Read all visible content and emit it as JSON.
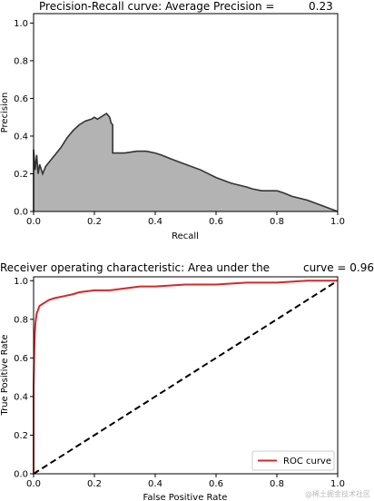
{
  "watermark": "@稀土掘金技术社区",
  "chart_data": [
    {
      "type": "area",
      "title": "Precision-Recall curve: Average Precision =",
      "title_value": "0.23",
      "xlabel": "Recall",
      "ylabel": "Precision",
      "xlim": [
        0.0,
        1.0
      ],
      "ylim": [
        0.0,
        1.05
      ],
      "xticks": [
        "0.0",
        "0.2",
        "0.4",
        "0.6",
        "0.8",
        "1.0"
      ],
      "yticks": [
        "0.0",
        "0.2",
        "0.4",
        "0.6",
        "0.8",
        "1.0"
      ],
      "fill_color": "#b3b3b3",
      "line_color": "#333333",
      "series": [
        {
          "x": [
            0.0,
            0.0,
            0.005,
            0.01,
            0.015,
            0.02,
            0.03,
            0.04,
            0.05,
            0.07,
            0.09,
            0.11,
            0.13,
            0.15,
            0.17,
            0.19,
            0.2,
            0.21,
            0.22,
            0.23,
            0.24,
            0.25,
            0.255,
            0.26,
            0.26,
            0.3,
            0.34,
            0.37,
            0.4,
            0.42,
            0.45,
            0.5,
            0.55,
            0.6,
            0.65,
            0.7,
            0.72,
            0.75,
            0.8,
            0.82,
            0.85,
            0.9,
            0.95,
            1.0
          ],
          "y": [
            0.0,
            0.33,
            0.22,
            0.3,
            0.2,
            0.25,
            0.2,
            0.24,
            0.26,
            0.3,
            0.34,
            0.39,
            0.43,
            0.46,
            0.48,
            0.49,
            0.5,
            0.49,
            0.5,
            0.51,
            0.52,
            0.5,
            0.47,
            0.46,
            0.31,
            0.31,
            0.32,
            0.32,
            0.31,
            0.3,
            0.28,
            0.25,
            0.22,
            0.18,
            0.15,
            0.13,
            0.12,
            0.11,
            0.11,
            0.1,
            0.08,
            0.06,
            0.03,
            0.0
          ]
        }
      ]
    },
    {
      "type": "line",
      "title": "Receiver operating characteristic: Area under the",
      "title_suffix": "curve = 0.96",
      "xlabel": "False Positive Rate",
      "ylabel": "True Positive Rate",
      "xlim": [
        0.0,
        1.0
      ],
      "ylim": [
        0.0,
        1.02
      ],
      "xticks": [
        "0.0",
        "0.2",
        "0.4",
        "0.6",
        "0.8",
        "1.0"
      ],
      "yticks": [
        "0.0",
        "0.2",
        "0.4",
        "0.6",
        "0.8",
        "1.0"
      ],
      "legend_position": "lower-right",
      "series": [
        {
          "name": "ROC curve",
          "color": "#d62728",
          "x": [
            0.0,
            0.0,
            0.002,
            0.004,
            0.006,
            0.01,
            0.015,
            0.02,
            0.03,
            0.04,
            0.05,
            0.07,
            0.1,
            0.13,
            0.15,
            0.2,
            0.25,
            0.3,
            0.35,
            0.4,
            0.5,
            0.6,
            0.7,
            0.8,
            0.9,
            1.0
          ],
          "y": [
            0.0,
            0.45,
            0.62,
            0.72,
            0.78,
            0.83,
            0.85,
            0.87,
            0.88,
            0.89,
            0.9,
            0.91,
            0.92,
            0.93,
            0.94,
            0.95,
            0.95,
            0.96,
            0.97,
            0.97,
            0.98,
            0.98,
            0.99,
            0.99,
            1.0,
            1.0
          ]
        },
        {
          "name": "",
          "color": "#000000",
          "dashed": true,
          "x": [
            0.0,
            1.0
          ],
          "y": [
            0.0,
            1.0
          ]
        }
      ]
    }
  ]
}
